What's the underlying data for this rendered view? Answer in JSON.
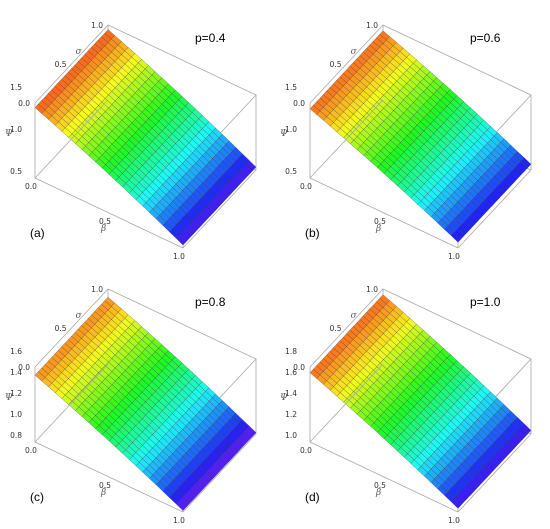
{
  "chart_data": [
    {
      "type": "surface",
      "panel_label": "(a)",
      "title": "p=0.4",
      "xlabel": "β",
      "ylabel": "σ",
      "zlabel": "Ψ",
      "x_ticks": [
        "0.0",
        "0.5",
        "1.0"
      ],
      "y_ticks": [
        "0.0",
        "0.5",
        "1.0"
      ],
      "z_ticks": [
        "1.5",
        "1.0",
        "0.5"
      ],
      "x_range": [
        0,
        1
      ],
      "y_range": [
        0,
        1
      ],
      "z_range": [
        0.3,
        1.6
      ],
      "corner_values": {
        "beta0_sigma0": 1.52,
        "beta0_sigma1": 1.52,
        "beta1_sigma0": 0.35,
        "beta1_sigma1": 0.35
      },
      "colormap": "rainbow"
    },
    {
      "type": "surface",
      "panel_label": "(b)",
      "title": "p=0.6",
      "xlabel": "β",
      "ylabel": "σ",
      "zlabel": "Ψ",
      "x_ticks": [
        "0.0",
        "0.5",
        "1.0"
      ],
      "y_ticks": [
        "0.0",
        "0.5",
        "1.0"
      ],
      "z_ticks": [
        "1.5",
        "1.0",
        "0.5"
      ],
      "x_range": [
        0,
        1
      ],
      "y_range": [
        0,
        1
      ],
      "z_range": [
        0.4,
        1.7
      ],
      "corner_values": {
        "beta0_sigma0": 1.6,
        "beta0_sigma1": 1.6,
        "beta1_sigma0": 0.5,
        "beta1_sigma1": 0.5
      },
      "colormap": "rainbow"
    },
    {
      "type": "surface",
      "panel_label": "(c)",
      "title": "p=0.8",
      "xlabel": "β",
      "ylabel": "σ",
      "zlabel": "Ψ",
      "x_ticks": [
        "0.0",
        "0.5",
        "1.0"
      ],
      "y_ticks": [
        "0.0",
        "0.5",
        "1.0"
      ],
      "z_ticks": [
        "1.6",
        "1.4",
        "1.2",
        "1.0",
        "0.8"
      ],
      "x_range": [
        0,
        1
      ],
      "y_range": [
        0,
        1
      ],
      "z_range": [
        0.7,
        1.8
      ],
      "corner_values": {
        "beta0_sigma0": 1.68,
        "beta0_sigma1": 1.68,
        "beta1_sigma0": 0.72,
        "beta1_sigma1": 0.72
      },
      "colormap": "rainbow"
    },
    {
      "type": "surface",
      "panel_label": "(d)",
      "title": "p=1.0",
      "xlabel": "β",
      "ylabel": "σ",
      "zlabel": "Ψ",
      "x_ticks": [
        "0.0",
        "0.5",
        "1.0"
      ],
      "y_ticks": [
        "0.0",
        "0.5",
        "1.0"
      ],
      "z_ticks": [
        "1.8",
        "1.6",
        "1.4",
        "1.2",
        "1.0"
      ],
      "x_range": [
        0,
        1
      ],
      "y_range": [
        0,
        1
      ],
      "z_range": [
        0.85,
        1.9
      ],
      "corner_values": {
        "beta0_sigma0": 1.82,
        "beta0_sigma1": 1.82,
        "beta1_sigma0": 0.9,
        "beta1_sigma1": 0.9
      },
      "colormap": "rainbow"
    }
  ]
}
